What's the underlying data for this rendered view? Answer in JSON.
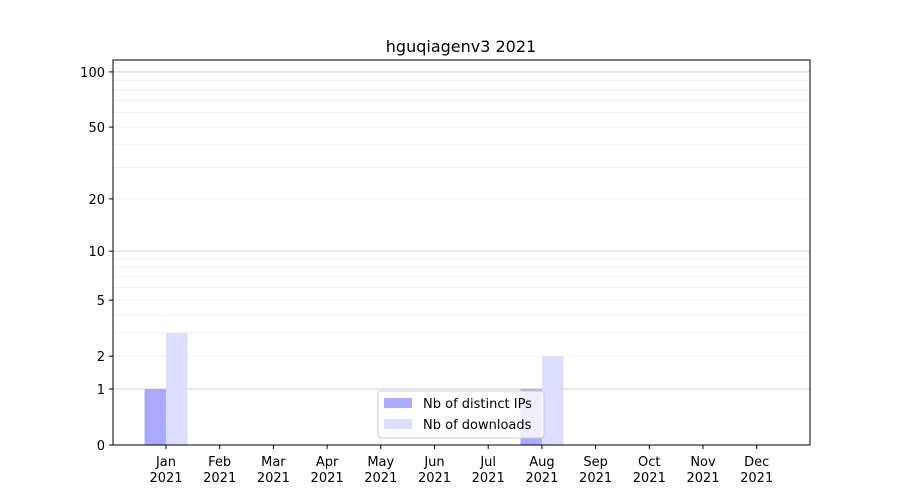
{
  "chart_data": {
    "type": "bar",
    "title": "hguqiagenv3 2021",
    "xlabel": "",
    "ylabel": "",
    "yscale": "log(1+y)",
    "ylim": [
      0,
      116
    ],
    "yticks": [
      0,
      1,
      2,
      5,
      10,
      20,
      50,
      100
    ],
    "categories": [
      "Jan\n2021",
      "Feb\n2021",
      "Mar\n2021",
      "Apr\n2021",
      "May\n2021",
      "Jun\n2021",
      "Jul\n2021",
      "Aug\n2021",
      "Sep\n2021",
      "Oct\n2021",
      "Nov\n2021",
      "Dec\n2021"
    ],
    "series": [
      {
        "name": "Nb of distinct IPs",
        "color": "#aaaaff",
        "values": [
          1,
          0,
          0,
          0,
          0,
          0,
          0,
          1,
          0,
          0,
          0,
          0
        ]
      },
      {
        "name": "Nb of downloads",
        "color": "#ddddff",
        "values": [
          3,
          0,
          0,
          0,
          0,
          0,
          0,
          2,
          0,
          0,
          0,
          0
        ]
      }
    ],
    "grid": true,
    "legend": "lower-center"
  }
}
